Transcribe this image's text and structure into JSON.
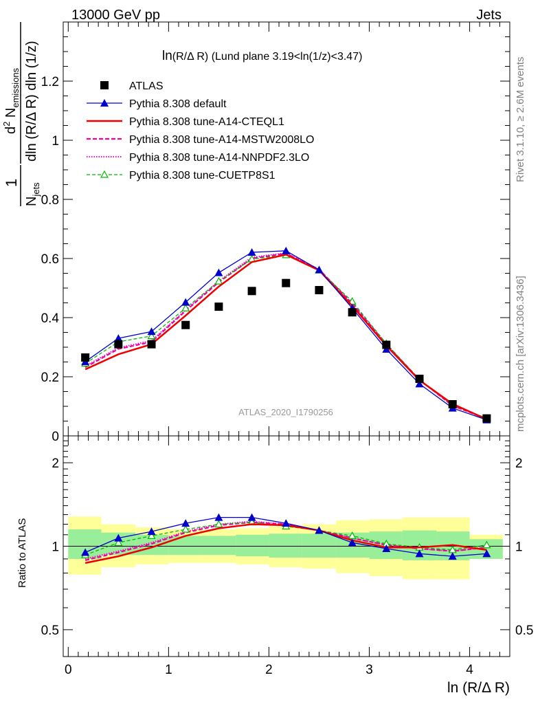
{
  "header": {
    "left": "13000 GeV pp",
    "right": "Jets"
  },
  "plot_title_main": "ln",
  "plot_title_rest": "(R/Δ R) (Lund plane 3.19<ln(1/z)<3.47)",
  "watermark": "ATLAS_2020_I1790256",
  "side_labels": {
    "rivet": "Rivet 3.1.10, ≥ 2.6M events",
    "mcplots": "mcplots.cern.ch [arXiv:1306.3436]"
  },
  "y_label_main": {
    "frac_num": "1",
    "frac_den_pre": "N",
    "frac_den_sub": "jets",
    "d2": "d",
    "d2_sup": "2",
    "N": " N",
    "N_sub": "emissions",
    "denom_rest": "dln (R/Δ R) dln (1/z)"
  },
  "y_label_ratio": "Ratio to ATLAS",
  "x_label": "ln (R/Δ R)",
  "colors": {
    "atlas": "#000000",
    "default": "#0000cc",
    "a14_cteql1": "#ee0000",
    "a14_mstw": "#ee0099",
    "a14_nnpdf": "#ff00dd",
    "cuetp8s1": "#00bb00",
    "band_inner": "#99ee99",
    "band_outer": "#ffff99"
  },
  "chart_data": {
    "type": "line",
    "x": [
      0.17,
      0.5,
      0.83,
      1.17,
      1.5,
      1.83,
      2.17,
      2.5,
      2.83,
      3.17,
      3.5,
      3.83,
      4.17
    ],
    "main": {
      "ylim": [
        0,
        1.4
      ],
      "xlim": [
        -0.05,
        4.4
      ],
      "yticks": [
        0,
        0.2,
        0.4,
        0.6,
        0.8,
        1,
        1.2
      ],
      "ytick_labels": [
        "0",
        "0.2",
        "0.4",
        "0.6",
        "0.8",
        "1",
        "1.2"
      ],
      "series": [
        {
          "key": "atlas",
          "name": "ATLAS",
          "values": [
            0.265,
            0.31,
            0.31,
            0.375,
            0.437,
            0.49,
            0.517,
            0.493,
            0.418,
            0.308,
            0.193,
            0.107,
            0.059
          ]
        },
        {
          "key": "default",
          "name": "Pythia 8.308 default",
          "values": [
            0.251,
            0.33,
            0.353,
            0.452,
            0.552,
            0.621,
            0.626,
            0.562,
            0.432,
            0.293,
            0.176,
            0.094,
            0.054
          ]
        },
        {
          "key": "a14_cteql1",
          "name": "Pythia 8.308 tune-A14-CTEQL1",
          "values": [
            0.225,
            0.276,
            0.31,
            0.407,
            0.505,
            0.588,
            0.613,
            0.56,
            0.44,
            0.305,
            0.188,
            0.108,
            0.056
          ]
        },
        {
          "key": "a14_mstw",
          "name": "Pythia 8.308 tune-A14-MSTW2008LO",
          "values": [
            0.232,
            0.294,
            0.318,
            0.423,
            0.52,
            0.6,
            0.617,
            0.563,
            0.448,
            0.31,
            0.19,
            0.102,
            0.058
          ]
        },
        {
          "key": "a14_nnpdf",
          "name": "Pythia 8.308 tune-A14-NNPDF2.3LO",
          "values": [
            0.236,
            0.298,
            0.322,
            0.426,
            0.524,
            0.604,
            0.619,
            0.562,
            0.446,
            0.31,
            0.189,
            0.103,
            0.058
          ]
        },
        {
          "key": "cuetp8s1",
          "name": "Pythia 8.308 tune-CUETP8S1",
          "values": [
            0.245,
            0.318,
            0.338,
            0.432,
            0.523,
            0.598,
            0.612,
            0.56,
            0.455,
            0.312,
            0.19,
            0.104,
            0.06
          ]
        }
      ]
    },
    "ratio": {
      "ylim": [
        0.4,
        2.5
      ],
      "yticks": [
        0.5,
        1,
        2
      ],
      "ytick_labels": [
        "0.5",
        "1",
        "2"
      ],
      "band_edges": [
        0,
        0.33,
        0.67,
        1,
        1.33,
        1.67,
        2,
        2.33,
        2.67,
        3,
        3.33,
        3.67,
        4,
        4.33
      ],
      "band_inner": [
        [
          0.9,
          1.15
        ],
        [
          0.93,
          1.12
        ],
        [
          0.93,
          1.1
        ],
        [
          0.93,
          1.09
        ],
        [
          0.93,
          1.09
        ],
        [
          0.92,
          1.1
        ],
        [
          0.91,
          1.11
        ],
        [
          0.91,
          1.11
        ],
        [
          0.91,
          1.12
        ],
        [
          0.9,
          1.13
        ],
        [
          0.89,
          1.14
        ],
        [
          0.89,
          1.13
        ],
        [
          0.9,
          1.06
        ]
      ],
      "band_outer": [
        [
          0.79,
          1.28
        ],
        [
          0.84,
          1.2
        ],
        [
          0.86,
          1.17
        ],
        [
          0.87,
          1.15
        ],
        [
          0.87,
          1.15
        ],
        [
          0.86,
          1.16
        ],
        [
          0.84,
          1.18
        ],
        [
          0.83,
          1.2
        ],
        [
          0.8,
          1.24
        ],
        [
          0.78,
          1.25
        ],
        [
          0.76,
          1.27
        ],
        [
          0.76,
          1.27
        ],
        [
          0.9,
          1.1
        ]
      ],
      "series": [
        {
          "key": "default",
          "values": [
            0.95,
            1.07,
            1.13,
            1.21,
            1.27,
            1.27,
            1.21,
            1.14,
            1.03,
            0.98,
            0.94,
            0.92,
            0.94
          ]
        },
        {
          "key": "a14_cteql1",
          "values": [
            0.87,
            0.92,
            0.99,
            1.09,
            1.16,
            1.2,
            1.19,
            1.14,
            1.05,
            0.99,
            0.99,
            1.01,
            0.97
          ]
        },
        {
          "key": "a14_mstw",
          "values": [
            0.89,
            0.95,
            1.02,
            1.12,
            1.19,
            1.22,
            1.2,
            1.14,
            1.07,
            1.01,
            0.98,
            0.96,
            0.99
          ]
        },
        {
          "key": "a14_nnpdf",
          "values": [
            0.9,
            0.96,
            1.03,
            1.13,
            1.2,
            1.23,
            1.2,
            1.14,
            1.07,
            1.01,
            0.98,
            0.96,
            0.99
          ]
        },
        {
          "key": "cuetp8s1",
          "values": [
            0.93,
            1.03,
            1.09,
            1.15,
            1.2,
            1.22,
            1.18,
            1.14,
            1.09,
            1.02,
            0.99,
            0.97,
            1.01
          ]
        }
      ]
    },
    "xticks": [
      0,
      1,
      2,
      3,
      4
    ],
    "xtick_labels": [
      "0",
      "1",
      "2",
      "3",
      "4"
    ]
  }
}
